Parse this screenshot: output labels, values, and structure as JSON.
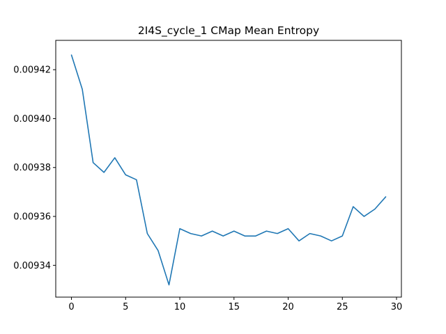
{
  "chart_data": {
    "type": "line",
    "title": "2I4S_cycle_1 CMap Mean Entropy",
    "xlabel": "",
    "ylabel": "",
    "xlim": [
      -1.45,
      30.45
    ],
    "ylim": [
      0.009327,
      0.009432
    ],
    "grid": false,
    "x_ticks": [
      0,
      5,
      10,
      15,
      20,
      25,
      30
    ],
    "x_tick_labels": [
      "0",
      "5",
      "10",
      "15",
      "20",
      "25",
      "30"
    ],
    "y_ticks": [
      0.00934,
      0.00936,
      0.00938,
      0.0094,
      0.00942
    ],
    "y_tick_labels": [
      "0.00934",
      "0.00936",
      "0.00938",
      "0.00940",
      "0.00942"
    ],
    "series": [
      {
        "color": "#1f77b4",
        "x": [
          0,
          1,
          2,
          3,
          4,
          5,
          6,
          7,
          8,
          9,
          10,
          11,
          12,
          13,
          14,
          15,
          16,
          17,
          18,
          19,
          20,
          21,
          22,
          23,
          24,
          25,
          26,
          27,
          28,
          29
        ],
        "y": [
          0.009426,
          0.009412,
          0.009382,
          0.009378,
          0.009384,
          0.009377,
          0.009375,
          0.009353,
          0.009346,
          0.009332,
          0.009355,
          0.009353,
          0.009352,
          0.009354,
          0.009352,
          0.009354,
          0.009352,
          0.009352,
          0.009354,
          0.009353,
          0.009355,
          0.00935,
          0.009353,
          0.009352,
          0.00935,
          0.009352,
          0.009364,
          0.00936,
          0.009363,
          0.009368
        ]
      }
    ]
  }
}
